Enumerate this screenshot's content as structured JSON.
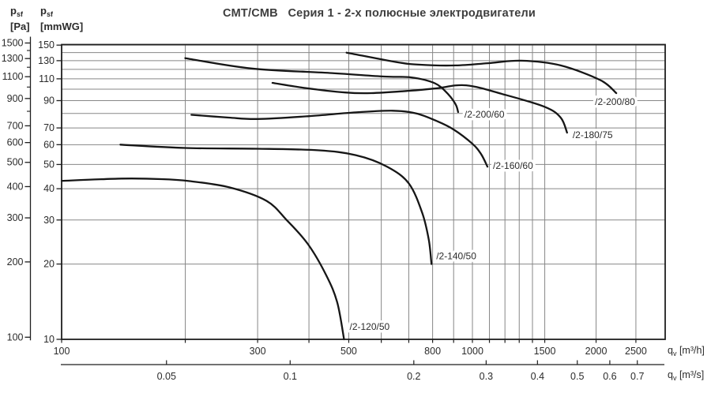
{
  "chart_data": {
    "type": "line",
    "title": "CMT/CMB   Серия 1 - 2-х полюсные электродвигатели",
    "x_scale": "log",
    "y_scale": "log",
    "grid": true,
    "x_axis": {
      "unit": "m³/h",
      "symbol": "q",
      "subscript": "v",
      "unit_label": "[m³/h]",
      "range": [
        100,
        2944
      ],
      "tick_labels": [
        100,
        300,
        500,
        800,
        1000,
        1500,
        2000,
        2500
      ],
      "gridlines": [
        200,
        300,
        400,
        500,
        600,
        700,
        800,
        900,
        1000,
        1100,
        1200,
        1300,
        1400,
        1500,
        2000,
        2500
      ]
    },
    "x_axis_secondary": {
      "unit": "m³/s",
      "symbol": "q",
      "subscript": "v",
      "unit_label": "[m³/s]",
      "tick_labels": [
        0.05,
        0.1,
        0.2,
        0.3,
        0.4,
        0.5,
        0.6,
        0.7
      ]
    },
    "y_axis": {
      "unit": "mmWG",
      "symbol": "p",
      "subscript": "sf",
      "unit_label": "[mmWG]",
      "range": [
        10,
        151
      ],
      "tick_labels": [
        150,
        130,
        110,
        90,
        70,
        60,
        50,
        40,
        30,
        20,
        10
      ],
      "gridlines": [
        10,
        20,
        30,
        40,
        50,
        60,
        70,
        80,
        90,
        100,
        110,
        120,
        130,
        140,
        150
      ]
    },
    "y_axis_secondary": {
      "unit": "Pa",
      "symbol": "p",
      "subscript": "sf",
      "unit_label": "[Pa]",
      "range": [
        100,
        1530
      ],
      "tick_labels": [
        1500,
        1300,
        1100,
        900,
        700,
        600,
        500,
        400,
        300,
        200,
        100
      ],
      "minor_ticks": [
        1400,
        1200,
        1000,
        800
      ]
    },
    "series": [
      {
        "label": "/2-120/50",
        "points": [
          [
            100,
            43
          ],
          [
            140,
            43.9
          ],
          [
            175,
            43.7
          ],
          [
            205,
            42.9
          ],
          [
            256,
            40.5
          ],
          [
            315,
            35.8
          ],
          [
            353,
            30
          ],
          [
            398,
            24
          ],
          [
            441,
            18
          ],
          [
            469,
            14
          ],
          [
            487,
            10
          ]
        ]
      },
      {
        "label": "/2-140/50",
        "points": [
          [
            139,
            60
          ],
          [
            200,
            58.2
          ],
          [
            300,
            57.8
          ],
          [
            420,
            57
          ],
          [
            520,
            54.5
          ],
          [
            620,
            49
          ],
          [
            700,
            42
          ],
          [
            755,
            32
          ],
          [
            783,
            25
          ],
          [
            795,
            20
          ]
        ]
      },
      {
        "label": "/2-160/60",
        "points": [
          [
            207,
            79
          ],
          [
            255,
            77
          ],
          [
            300,
            76
          ],
          [
            400,
            78
          ],
          [
            520,
            80.8
          ],
          [
            640,
            82
          ],
          [
            730,
            80
          ],
          [
            820,
            74.5
          ],
          [
            900,
            69
          ],
          [
            1000,
            60.5
          ],
          [
            1050,
            55
          ],
          [
            1088,
            49
          ]
        ]
      },
      {
        "label": "/2-180/75",
        "points": [
          [
            326,
            106
          ],
          [
            393,
            101
          ],
          [
            490,
            97
          ],
          [
            567,
            96.4
          ],
          [
            708,
            98.6
          ],
          [
            815,
            100.7
          ],
          [
            966,
            103.6
          ],
          [
            1200,
            95
          ],
          [
            1500,
            85
          ],
          [
            1640,
            77
          ],
          [
            1700,
            67
          ]
        ]
      },
      {
        "label": "/2-200/60",
        "points": [
          [
            200,
            133
          ],
          [
            290,
            121
          ],
          [
            455,
            116
          ],
          [
            610,
            112.3
          ],
          [
            710,
            111.4
          ],
          [
            810,
            105.6
          ],
          [
            870,
            96
          ],
          [
            910,
            87
          ],
          [
            923,
            81
          ]
        ]
      },
      {
        "label": "/2-200/80",
        "points": [
          [
            494,
            140
          ],
          [
            650,
            128.5
          ],
          [
            740,
            125.3
          ],
          [
            910,
            124.4
          ],
          [
            1090,
            127
          ],
          [
            1315,
            130
          ],
          [
            1640,
            124.4
          ],
          [
            2050,
            108.6
          ],
          [
            2240,
            96.4
          ]
        ]
      }
    ],
    "colors": {
      "curve": "#161616",
      "grid": "#878787",
      "border": "#1f1f1f",
      "text": "#2b2b2b",
      "title": "#3d3d3d"
    }
  }
}
